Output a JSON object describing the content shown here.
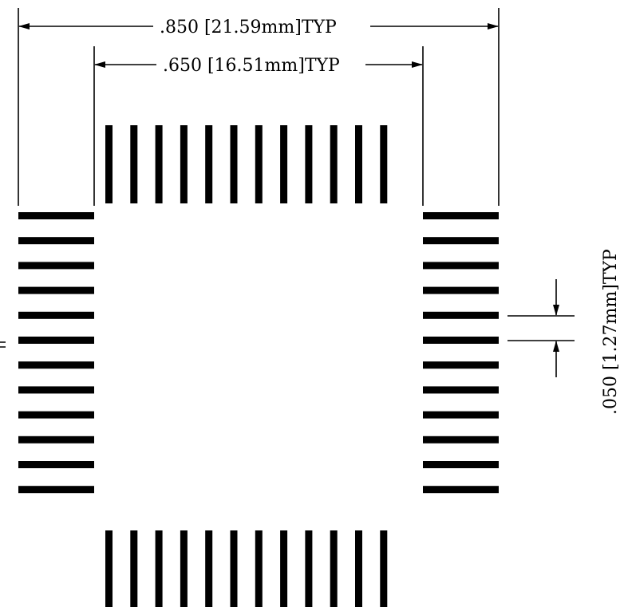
{
  "dimensions": {
    "outer_width": ".850  [21.59mm]TYP",
    "inner_width": ".650  [16.51mm]TYP",
    "pitch": ".050  [1.27mm]TYP"
  },
  "pads": {
    "per_side": 12,
    "sides": [
      "top",
      "bottom",
      "left",
      "right"
    ]
  },
  "colors": {
    "ink": "#000000",
    "background": "#ffffff"
  }
}
